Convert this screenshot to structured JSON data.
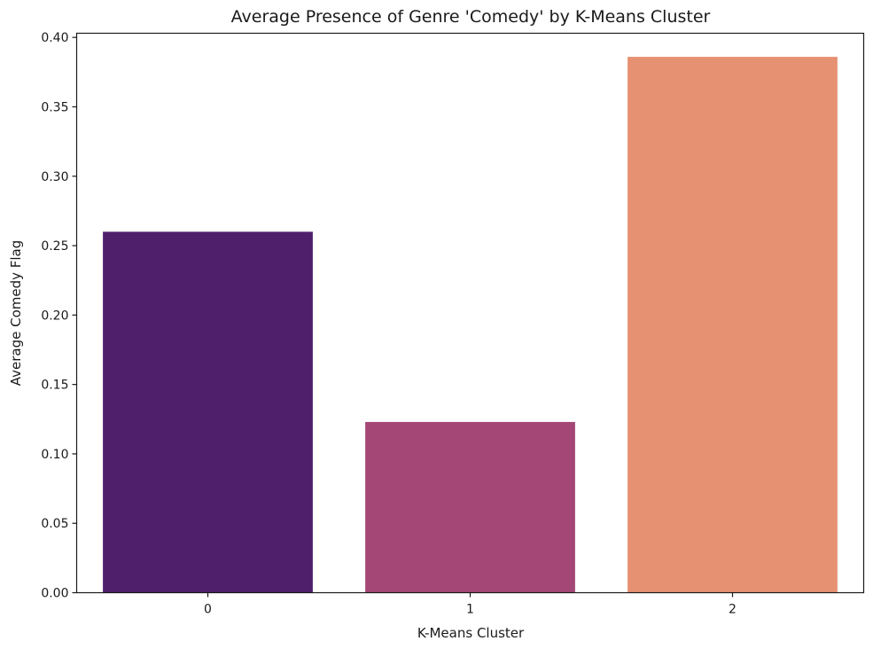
{
  "chart_data": {
    "type": "bar",
    "title": "Average Presence of Genre 'Comedy' by K-Means Cluster",
    "xlabel": "K-Means Cluster",
    "ylabel": "Average Comedy Flag",
    "categories": [
      "0",
      "1",
      "2"
    ],
    "values": [
      0.26,
      0.123,
      0.386
    ],
    "colors": [
      "#4f1f6b",
      "#a44776",
      "#e69172"
    ],
    "ylim": [
      0,
      0.403
    ],
    "yticks": [
      0.0,
      0.05,
      0.1,
      0.15,
      0.2,
      0.25,
      0.3,
      0.35,
      0.4
    ],
    "ytick_labels": [
      "0.00",
      "0.05",
      "0.10",
      "0.15",
      "0.20",
      "0.25",
      "0.30",
      "0.35",
      "0.40"
    ],
    "grid": false,
    "legend": "none"
  }
}
